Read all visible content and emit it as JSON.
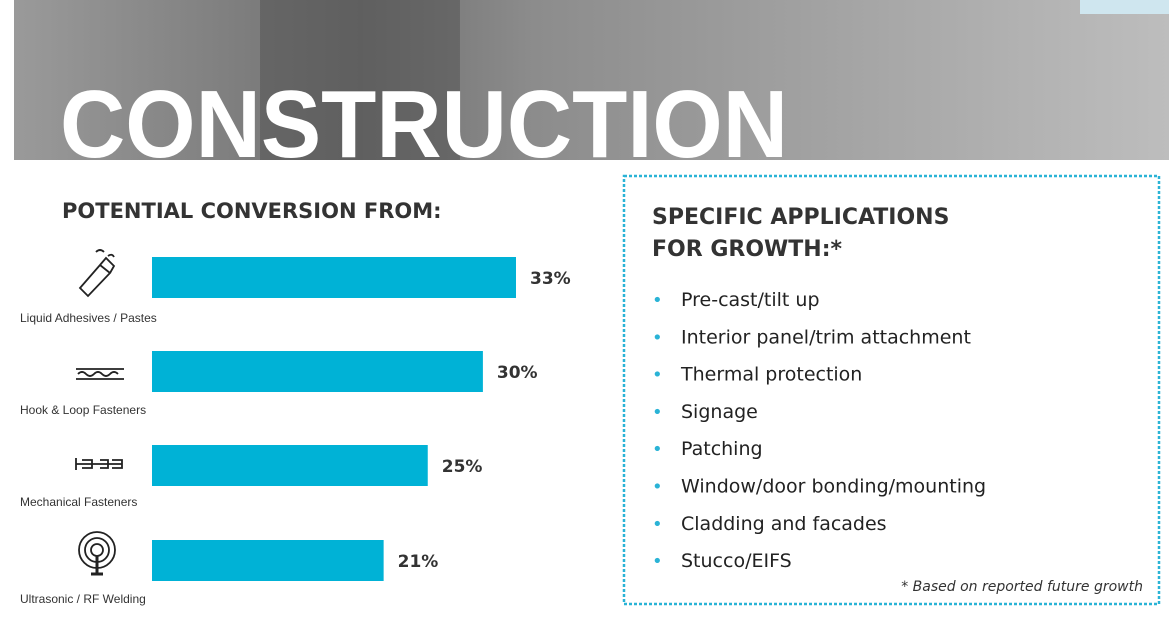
{
  "header": {
    "title": "CONSTRUCTION"
  },
  "chart_data": {
    "type": "bar",
    "orientation": "horizontal",
    "title": "POTENTIAL CONVERSION FROM:",
    "categories": [
      "Liquid Adhesives / Pastes",
      "Hook & Loop Fasteners",
      "Mechanical Fasteners",
      "Ultrasonic / RF Welding"
    ],
    "values": [
      33,
      30,
      25,
      21
    ],
    "value_labels": [
      "33%",
      "30%",
      "25%",
      "21%"
    ],
    "color": "#00b2d6"
  },
  "applications": {
    "title_lines": [
      "SPECIFIC APPLICATIONS",
      "FOR GROWTH:*"
    ],
    "items": [
      "Pre-cast/tilt up",
      "Interior panel/trim attachment",
      "Thermal protection",
      "Signage",
      "Patching",
      "Window/door bonding/mounting",
      "Cladding and facades",
      "Stucco/EIFS"
    ],
    "footnote": "* Based on reported future growth"
  }
}
